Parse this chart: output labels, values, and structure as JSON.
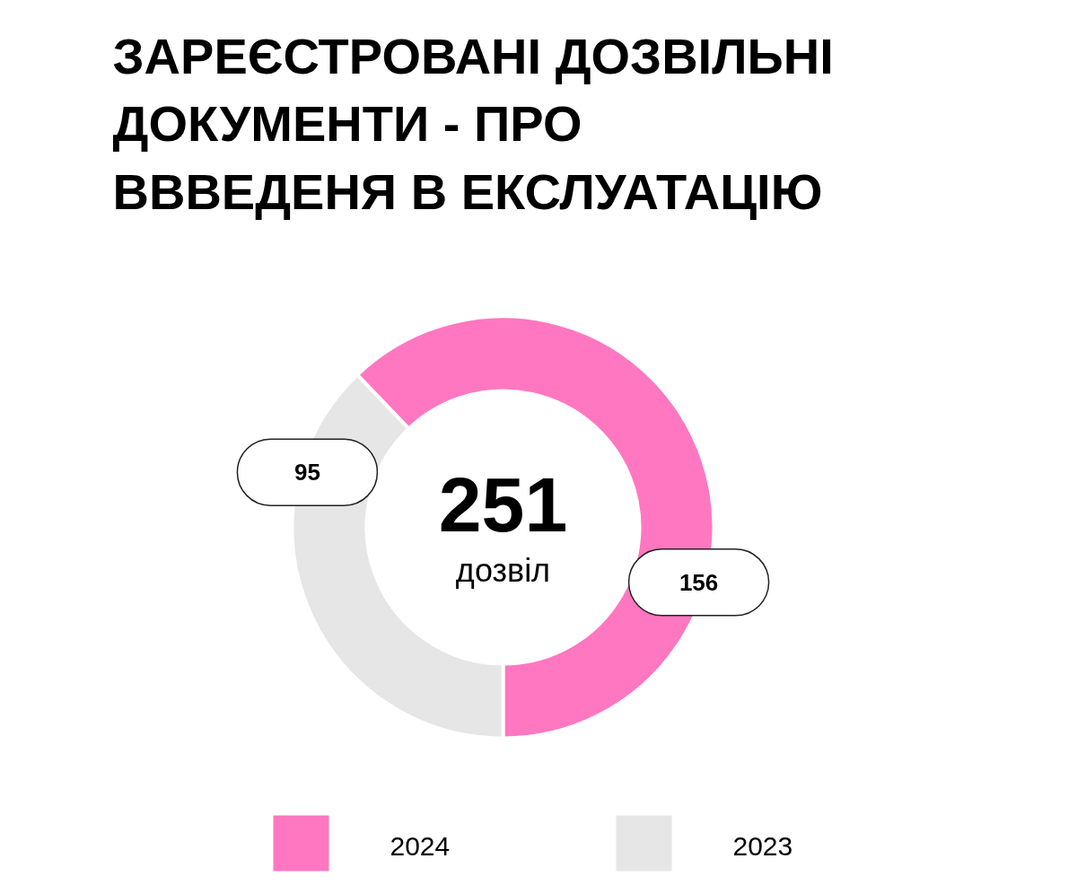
{
  "chart_data": {
    "type": "donut",
    "title": "ЗАРЕЄСТРОВАНІ ДОЗВІЛЬНІ ДОКУМЕНТИ - ПРО ВВВЕДЕНЯ В ЕКСЛУАТАЦІЮ",
    "categories": [
      "2024",
      "2023"
    ],
    "values": [
      156,
      95
    ],
    "colors": [
      "#ff77c0",
      "#e6e6e6"
    ],
    "data_labels": true,
    "legend": "bottom",
    "annotations": [
      "251",
      "дозвіл"
    ]
  }
}
